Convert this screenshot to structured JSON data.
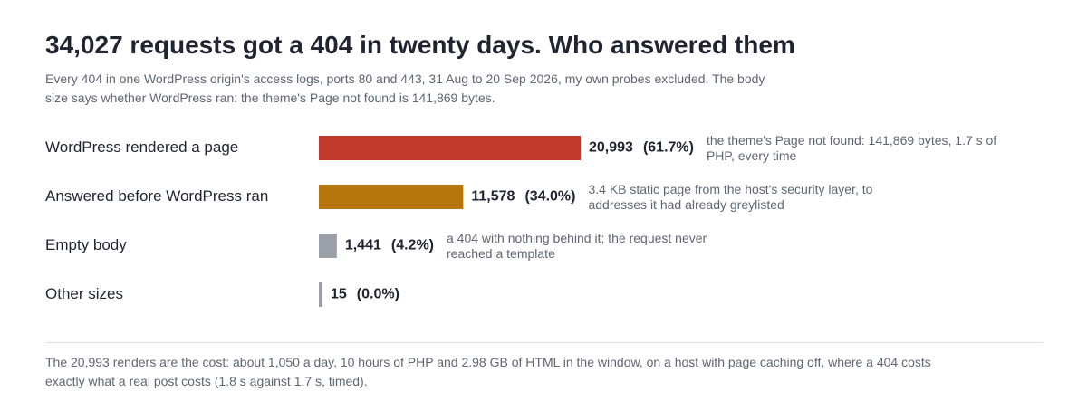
{
  "title": "34,027 requests got a 404 in twenty days. Who answered them",
  "subtitle": "Every 404 in one WordPress origin's access logs, ports 80 and 443, 31 Aug to 20 Sep 2026, my own probes excluded. The body size says whether WordPress ran: the theme's Page not found is 141,869 bytes.",
  "footnote": "The 20,993 renders are the cost: about 1,050 a day, 10 hours of PHP and 2.98 GB of HTML in the window, on a host with page caching off, where a 404 costs exactly what a real post costs (1.8 s against 1.7 s, timed).",
  "chart_data": {
    "type": "bar",
    "orientation": "horizontal",
    "categories": [
      "WordPress rendered a page",
      "Answered before WordPress ran",
      "Empty body",
      "Other sizes"
    ],
    "values": [
      20993,
      11578,
      1441,
      15
    ],
    "value_labels": [
      "20,993",
      "11,578",
      "1,441",
      "15"
    ],
    "percent_labels": [
      "(61.7%)",
      "(34.0%)",
      "(4.2%)",
      "(0.0%)"
    ],
    "notes": [
      "the theme's Page not found: 141,869 bytes, 1.7 s of PHP, every time",
      "3.4 KB static page from the host's security layer, to addresses it had already greylisted",
      "a 404 with nothing behind it; the request never reached a template",
      ""
    ],
    "colors": [
      "#c0392b",
      "#b7760b",
      "#9aa0a8",
      "#9aa0a8"
    ],
    "xlim": [
      0,
      20993
    ],
    "grid": false,
    "legend": "none"
  }
}
